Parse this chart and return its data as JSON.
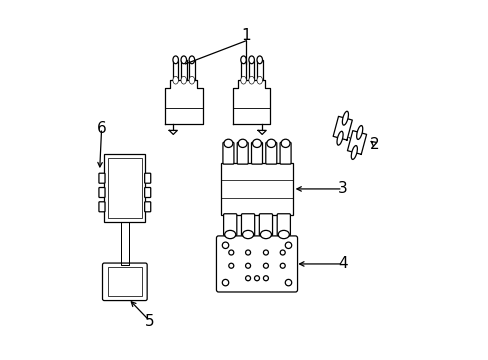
{
  "title": "",
  "background_color": "#ffffff",
  "line_color": "#000000",
  "label_color": "#000000",
  "fig_width": 4.89,
  "fig_height": 3.6,
  "dpi": 100,
  "label_fontsize": 11
}
